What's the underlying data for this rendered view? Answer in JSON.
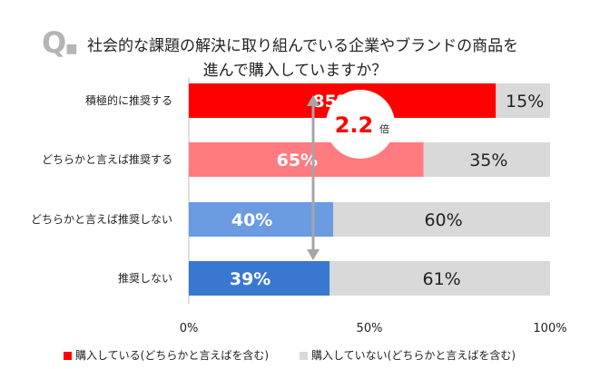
{
  "question": {
    "mark": "Q",
    "line1": "社会的な課題の解決に取り組んでいる企業やブランドの商品を",
    "line2": "進んで購入していますか？"
  },
  "chart_data": {
    "type": "bar",
    "orientation": "horizontal",
    "stacked": true,
    "categories": [
      "積極的に推奨する",
      "どちらかと言えば推奨する",
      "どちらかと言えば推奨しない",
      "推奨しない"
    ],
    "series": [
      {
        "name": "購入している(どちらかと言えばを含む)",
        "values": [
          85,
          65,
          40,
          39
        ],
        "colors": [
          "#ff0000",
          "#ff7b80",
          "#6b9be0",
          "#3878d0"
        ],
        "label_color": "#ffffff"
      },
      {
        "name": "購入していない(どちらかと言えばを含む)",
        "values": [
          15,
          35,
          60,
          61
        ],
        "colors": [
          "#d9d9d9",
          "#d9d9d9",
          "#d9d9d9",
          "#d9d9d9"
        ],
        "label_color": "#222222"
      }
    ],
    "value_suffix": "%",
    "xlim": [
      0,
      100
    ],
    "x_ticks": [
      "0%",
      "50%",
      "100%"
    ],
    "grid": false,
    "legend_position": "bottom",
    "annotation": {
      "text": "2.2",
      "unit": "倍",
      "from_category": 0,
      "to_category": 3,
      "color": "#ff0000"
    }
  }
}
